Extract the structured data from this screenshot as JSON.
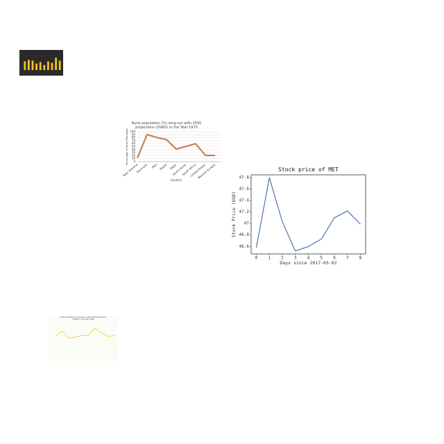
{
  "chart_data": [
    {
      "type": "bar",
      "values": [
        12,
        14,
        13,
        9,
        11,
        7,
        12,
        10,
        17,
        13
      ],
      "ylim": [
        0,
        20
      ],
      "color": "#f2c21b"
    },
    {
      "type": "line",
      "title": "Rural population (%) long-run with 2050 projections (OWID) in the Year 1970",
      "x_label": "Country",
      "y_label": "Percentage of Rural Population",
      "categories": [
        "New Zealand",
        "Denmark",
        "Mali",
        "Nepal",
        "Niger",
        "South Korea",
        "South Africa",
        "United States",
        "Western Europe"
      ],
      "values": [
        12,
        91,
        81,
        74,
        42,
        51,
        60,
        21,
        21
      ],
      "ylim": [
        0,
        100
      ],
      "yticks": [
        0,
        10,
        20,
        30,
        40,
        50,
        60,
        70,
        80,
        90,
        100
      ],
      "grid": true,
      "color": "#c8814f"
    },
    {
      "type": "line",
      "title": "Stock price of MET",
      "x_label": "Days since 2017-03-02",
      "y_label": "Stock Price (USD)",
      "x": [
        0,
        1,
        2,
        3,
        4,
        5,
        6,
        7,
        8
      ],
      "values": [
        46.58,
        47.8,
        47.03,
        46.52,
        46.6,
        46.73,
        47.1,
        47.22,
        46.99
      ],
      "xlim": [
        -0.4,
        8.4
      ],
      "xticks": [
        0,
        1,
        2,
        3,
        4,
        5,
        6,
        7,
        8
      ],
      "ylim": [
        46.47,
        47.85
      ],
      "yticks": [
        46.6,
        46.8,
        47.0,
        47.2,
        47.4,
        47.6,
        47.8
      ],
      "color": "#4c72b0"
    },
    {
      "type": "line",
      "title": "Rural population (%) long-run with 2050 projections (OWID) in the Year 1980",
      "values": [
        40,
        72,
        30,
        36,
        45,
        48,
        88,
        62,
        40,
        46
      ],
      "ylim": [
        0,
        100
      ],
      "color": "#f3d34a"
    }
  ]
}
